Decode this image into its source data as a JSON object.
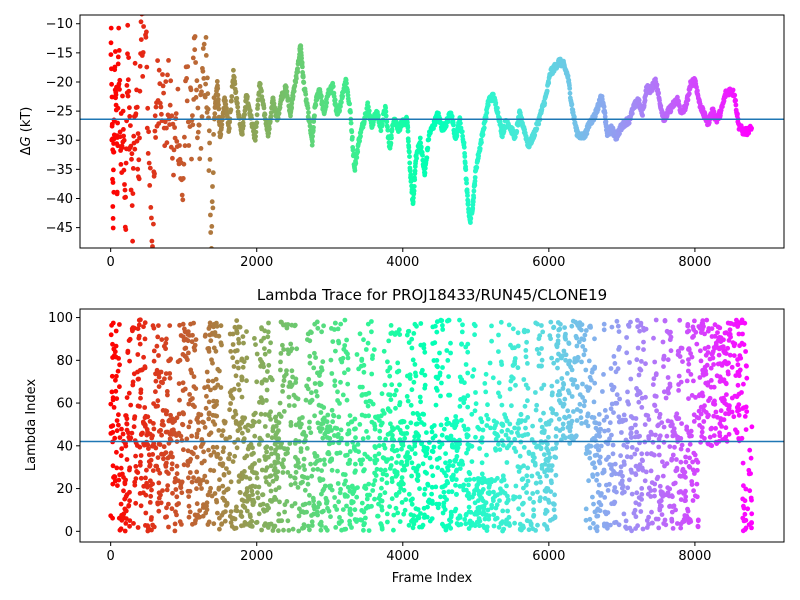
{
  "chart_data": [
    {
      "type": "scatter",
      "title": "",
      "xlabel": "",
      "ylabel": "ΔG (kT)",
      "ylabel_parts": {
        "delta": "Δ",
        "var": "G",
        "unit": " (kT)"
      },
      "xlim": [
        -420,
        9220
      ],
      "ylim": [
        -48.5,
        -8.5
      ],
      "xticks": [
        0,
        2000,
        4000,
        6000,
        8000
      ],
      "yticks": [
        -45,
        -40,
        -35,
        -30,
        -25,
        -20,
        -15,
        -10
      ],
      "hline": -26.4,
      "hline_color": "#1f77b4",
      "colormap": "rainbow",
      "marker_color_note": "points colored by frame index, reversed rainbow (red at start, violet at end)",
      "grid": false,
      "series": [
        {
          "points": [
            [
              0,
              -10.0
            ],
            [
              20,
              -30.5
            ],
            [
              35,
              -41.0
            ],
            [
              50,
              -26.0
            ],
            [
              70,
              -17.0
            ],
            [
              90,
              -38.0
            ],
            [
              110,
              -12.0
            ],
            [
              140,
              -33.0
            ],
            [
              170,
              -22.0
            ],
            [
              200,
              -46.5
            ],
            [
              230,
              -15.0
            ],
            [
              260,
              -28.0
            ],
            [
              300,
              -43.0
            ],
            [
              340,
              -20.0
            ],
            [
              380,
              -35.0
            ],
            [
              420,
              -14.0
            ],
            [
              470,
              -9.0
            ],
            [
              520,
              -31.0
            ],
            [
              580,
              -48.0
            ],
            [
              620,
              -24.0
            ],
            [
              680,
              -18.0
            ],
            [
              740,
              -27.0
            ],
            [
              800,
              -22.5
            ],
            [
              860,
              -33.0
            ],
            [
              920,
              -25.0
            ],
            [
              980,
              -40.5
            ],
            [
              1040,
              -21.0
            ],
            [
              1100,
              -28.0
            ],
            [
              1150,
              -17.5
            ],
            [
              1200,
              -30.0
            ],
            [
              1250,
              -23.0
            ],
            [
              1300,
              -16.5
            ],
            [
              1340,
              -29.0
            ],
            [
              1380,
              -45.0
            ],
            [
              1420,
              -26.0
            ],
            [
              1460,
              -20.0
            ],
            [
              1500,
              -30.0
            ],
            [
              1560,
              -22.5
            ],
            [
              1620,
              -28.5
            ],
            [
              1680,
              -18.5
            ],
            [
              1740,
              -24.5
            ],
            [
              1800,
              -29.0
            ],
            [
              1860,
              -22.0
            ],
            [
              1920,
              -26.0
            ],
            [
              1980,
              -30.0
            ],
            [
              2040,
              -20.0
            ],
            [
              2100,
              -25.0
            ],
            [
              2160,
              -29.0
            ],
            [
              2220,
              -23.0
            ],
            [
              2280,
              -26.5
            ],
            [
              2340,
              -22.5
            ],
            [
              2400,
              -21.0
            ],
            [
              2460,
              -25.5
            ],
            [
              2500,
              -22.0
            ],
            [
              2560,
              -18.0
            ],
            [
              2600,
              -13.5
            ],
            [
              2640,
              -20.0
            ],
            [
              2700,
              -25.0
            ],
            [
              2760,
              -30.5
            ],
            [
              2800,
              -24.0
            ],
            [
              2860,
              -21.0
            ],
            [
              2920,
              -25.5
            ],
            [
              2980,
              -22.0
            ],
            [
              3040,
              -20.5
            ],
            [
              3100,
              -26.0
            ],
            [
              3160,
              -23.0
            ],
            [
              3220,
              -19.5
            ],
            [
              3280,
              -25.0
            ],
            [
              3340,
              -35.0
            ],
            [
              3400,
              -30.0
            ],
            [
              3460,
              -27.0
            ],
            [
              3520,
              -24.0
            ],
            [
              3580,
              -27.5
            ],
            [
              3640,
              -25.0
            ],
            [
              3700,
              -28.0
            ],
            [
              3760,
              -24.5
            ],
            [
              3820,
              -31.5
            ],
            [
              3880,
              -26.0
            ],
            [
              3940,
              -28.0
            ],
            [
              4000,
              -27.0
            ],
            [
              4060,
              -26.5
            ],
            [
              4100,
              -35.0
            ],
            [
              4140,
              -41.0
            ],
            [
              4180,
              -33.0
            ],
            [
              4240,
              -30.0
            ],
            [
              4300,
              -36.0
            ],
            [
              4360,
              -29.0
            ],
            [
              4420,
              -27.5
            ],
            [
              4480,
              -25.5
            ],
            [
              4540,
              -28.0
            ],
            [
              4600,
              -27.0
            ],
            [
              4660,
              -25.0
            ],
            [
              4720,
              -30.0
            ],
            [
              4780,
              -26.5
            ],
            [
              4840,
              -31.0
            ],
            [
              4880,
              -39.0
            ],
            [
              4920,
              -44.0
            ],
            [
              4960,
              -41.0
            ],
            [
              5000,
              -35.0
            ],
            [
              5060,
              -31.0
            ],
            [
              5120,
              -27.0
            ],
            [
              5180,
              -23.0
            ],
            [
              5240,
              -22.5
            ],
            [
              5300,
              -25.0
            ],
            [
              5360,
              -29.0
            ],
            [
              5420,
              -26.5
            ],
            [
              5480,
              -28.0
            ],
            [
              5540,
              -29.5
            ],
            [
              5600,
              -25.5
            ],
            [
              5660,
              -28.0
            ],
            [
              5720,
              -31.0
            ],
            [
              5780,
              -29.5
            ],
            [
              5840,
              -27.5
            ],
            [
              5900,
              -25.0
            ],
            [
              5960,
              -22.5
            ],
            [
              6020,
              -18.5
            ],
            [
              6080,
              -17.5
            ],
            [
              6140,
              -16.5
            ],
            [
              6200,
              -17.0
            ],
            [
              6260,
              -19.0
            ],
            [
              6320,
              -24.5
            ],
            [
              6380,
              -28.5
            ],
            [
              6440,
              -29.5
            ],
            [
              6500,
              -29.0
            ],
            [
              6560,
              -27.0
            ],
            [
              6620,
              -26.0
            ],
            [
              6680,
              -24.0
            ],
            [
              6720,
              -22.5
            ],
            [
              6760,
              -25.0
            ],
            [
              6800,
              -29.0
            ],
            [
              6860,
              -28.0
            ],
            [
              6920,
              -29.5
            ],
            [
              6980,
              -28.0
            ],
            [
              7040,
              -27.0
            ],
            [
              7100,
              -26.5
            ],
            [
              7160,
              -24.5
            ],
            [
              7220,
              -23.0
            ],
            [
              7280,
              -25.5
            ],
            [
              7340,
              -21.0
            ],
            [
              7400,
              -21.5
            ],
            [
              7460,
              -19.5
            ],
            [
              7520,
              -23.5
            ],
            [
              7580,
              -26.5
            ],
            [
              7640,
              -25.0
            ],
            [
              7700,
              -24.0
            ],
            [
              7760,
              -23.0
            ],
            [
              7820,
              -25.5
            ],
            [
              7880,
              -24.0
            ],
            [
              7940,
              -20.5
            ],
            [
              8000,
              -19.5
            ],
            [
              8060,
              -23.5
            ],
            [
              8120,
              -25.5
            ],
            [
              8180,
              -27.0
            ],
            [
              8240,
              -25.0
            ],
            [
              8300,
              -26.5
            ],
            [
              8360,
              -25.0
            ],
            [
              8420,
              -22.0
            ],
            [
              8480,
              -21.5
            ],
            [
              8540,
              -22.0
            ],
            [
              8600,
              -27.5
            ],
            [
              8660,
              -28.5
            ],
            [
              8720,
              -28.5
            ],
            [
              8780,
              -28.0
            ]
          ]
        }
      ]
    },
    {
      "type": "scatter",
      "title": "Lambda Trace for PROJ18433/RUN45/CLONE19",
      "xlabel": "Frame Index",
      "ylabel": "Lambda Index",
      "xlim": [
        -420,
        9220
      ],
      "ylim": [
        -5,
        104
      ],
      "xticks": [
        0,
        2000,
        4000,
        6000,
        8000
      ],
      "yticks": [
        0,
        20,
        40,
        60,
        80,
        100
      ],
      "hline": 42,
      "hline_color": "#1f77b4",
      "colormap": "rainbow",
      "marker_color_note": "points colored by frame index, reversed rainbow (red at start, violet at end)",
      "grid": false,
      "x_range": [
        0,
        8780
      ],
      "y_range": [
        0,
        99
      ],
      "series": [
        {
          "name": ""
        }
      ]
    }
  ]
}
